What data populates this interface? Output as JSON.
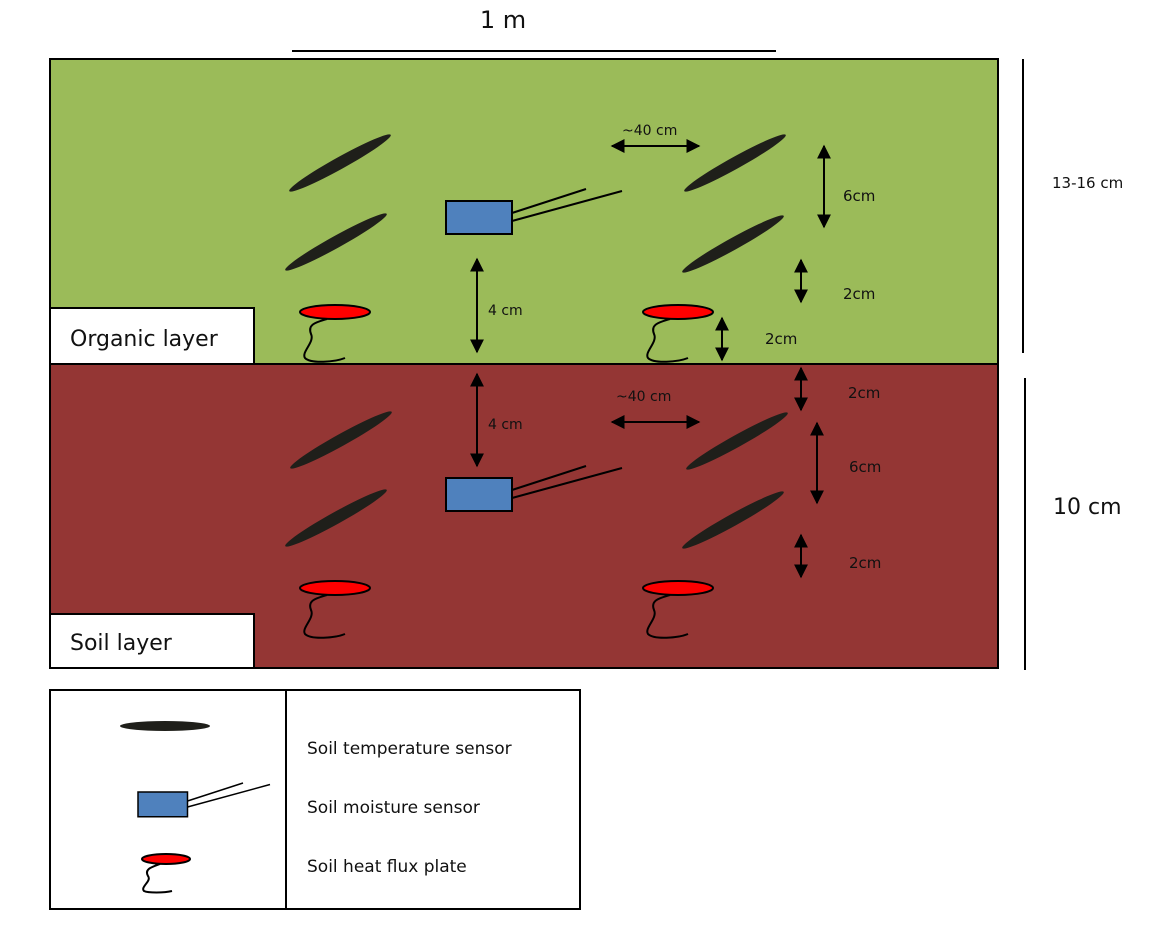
{
  "scale": {
    "label": "1 m"
  },
  "organic_layer": {
    "label": "Organic layer",
    "depth_label": "13-16 cm",
    "spacing_label": "~40 cm",
    "probe_depth_label": "4 cm",
    "temp_gap_label": "6cm",
    "temp_offset_label": "2cm",
    "plate_offset_label": "2cm"
  },
  "soil_layer": {
    "label": "Soil layer",
    "depth_label": "10 cm",
    "spacing_label": "~40 cm",
    "probe_depth_label": "4 cm",
    "top_offset_label": "2cm",
    "temp_gap_label": "6cm",
    "bottom_offset_label": "2cm"
  },
  "legend": {
    "items": [
      {
        "label": "Soil temperature sensor"
      },
      {
        "label": "Soil moisture sensor"
      },
      {
        "label": "Soil heat flux plate"
      }
    ]
  },
  "colors": {
    "organic": "#9bbb59",
    "soil": "#943634",
    "temperature_sensor": "#1f1f1a",
    "moisture_sensor": "#4f81bd",
    "heat_flux_plate": "#ff0000"
  }
}
